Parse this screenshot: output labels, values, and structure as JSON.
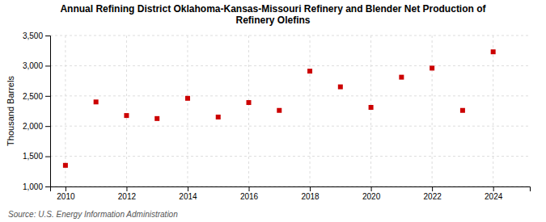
{
  "chart_data": {
    "type": "scatter",
    "title": "Annual Refining District Oklahoma-Kansas-Missouri Refinery and Blender Net Production of\nRefinery Olefins",
    "ylabel": "Thousand Barrels",
    "source": "Source: U.S. Energy Information Administration",
    "x": [
      2010,
      2011,
      2012,
      2013,
      2014,
      2015,
      2016,
      2017,
      2018,
      2019,
      2020,
      2021,
      2022,
      2023,
      2024
    ],
    "values": [
      1350,
      2400,
      2175,
      2125,
      2460,
      2150,
      2390,
      2260,
      2910,
      2650,
      2310,
      2810,
      2960,
      2260,
      3230
    ],
    "color": "#CC0000",
    "marker": "square",
    "xlim": [
      2009.5,
      2025.2
    ],
    "xticks": [
      2010,
      2012,
      2014,
      2016,
      2018,
      2020,
      2022,
      2024
    ],
    "ylim": [
      1000,
      3500
    ],
    "yticks": [
      {
        "value": 1000,
        "label": "1,000"
      },
      {
        "value": 1500,
        "label": "1,500"
      },
      {
        "value": 2000,
        "label": "2,000"
      },
      {
        "value": 2500,
        "label": "2,500"
      },
      {
        "value": 3000,
        "label": "3,000"
      },
      {
        "value": 3500,
        "label": "3,500"
      }
    ],
    "grid": true
  }
}
